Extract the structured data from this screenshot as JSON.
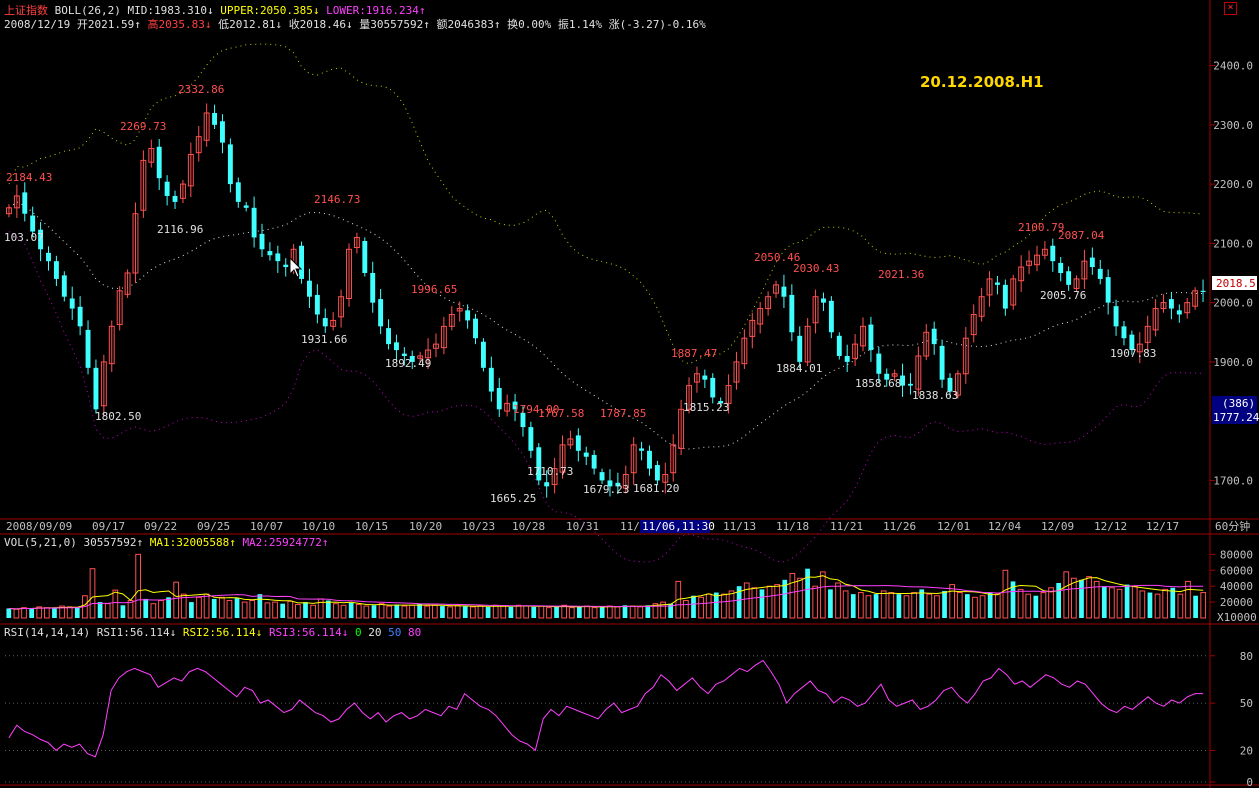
{
  "header": {
    "index_name": "上证指数",
    "boll_label": "BOLL(26,2)",
    "mid": "MID:1983.310↓",
    "upper": "UPPER:2050.385↓",
    "lower": "LOWER:1916.234↑",
    "date": "2008/12/19",
    "open": "开2021.59↑",
    "high": "高2035.83↓",
    "low": "低2012.81↓",
    "close": "收2018.46↓",
    "volume": "量30557592↑",
    "amount": "额2046383↑",
    "turnover": "换0.00%",
    "amplitude": "振1.14%",
    "change": "涨(-3.27)-0.16%"
  },
  "watermark": "20.12.2008.H1",
  "close_icon": "close-icon",
  "chart_data": [
    {
      "type": "candlestick",
      "title": "上证指数",
      "y_ticks": [
        "2400.0",
        "2300.0",
        "2200.0",
        "2100.0",
        "2000.0",
        "1900.0",
        "1700.0"
      ],
      "ylim": [
        1640,
        2460
      ],
      "x_ticks": [
        "2008/09/09",
        "09/17",
        "09/22",
        "09/25",
        "10/07",
        "10/10",
        "10/15",
        "10/20",
        "10/23",
        "10/28",
        "10/31",
        "11/0",
        "11/06,11:30",
        "11/13",
        "11/18",
        "11/21",
        "11/26",
        "12/01",
        "12/04",
        "12/09",
        "12/12",
        "12/17",
        "60分钟"
      ],
      "last_price": "2018.5",
      "side_count": "(386)",
      "side_value": "1777.24",
      "annotations_high": [
        "2184.43",
        "2269.73",
        "2332.86",
        "2146.73",
        "1996.65",
        "1794.00",
        "1767.58",
        "1787.85",
        "1887.47",
        "2050.46",
        "2030.43",
        "2021.36",
        "2100.79",
        "2087.04"
      ],
      "annotations_low": [
        "103.07",
        "2116.96",
        "1802.50",
        "1931.66",
        "1892.49",
        "1665.25",
        "1710.73",
        "1679.23",
        "1681.20",
        "1815.23",
        "1884.01",
        "1858.68",
        "1838.63",
        "2005.76",
        "1907.83"
      ],
      "close_series": [
        2160,
        2180,
        2150,
        2120,
        2090,
        2070,
        2040,
        2010,
        1990,
        1960,
        1890,
        1820,
        1900,
        1960,
        2020,
        2050,
        2150,
        2240,
        2260,
        2210,
        2180,
        2170,
        2200,
        2250,
        2280,
        2320,
        2300,
        2270,
        2200,
        2170,
        2160,
        2110,
        2090,
        2080,
        2070,
        2060,
        2090,
        2040,
        2010,
        1980,
        1960,
        1970,
        2010,
        2090,
        2110,
        2050,
        2000,
        1960,
        1930,
        1920,
        1910,
        1900,
        1910,
        1920,
        1930,
        1960,
        1980,
        1990,
        1970,
        1940,
        1890,
        1850,
        1820,
        1830,
        1820,
        1790,
        1750,
        1700,
        1690,
        1720,
        1760,
        1770,
        1750,
        1740,
        1720,
        1700,
        1690,
        1690,
        1710,
        1760,
        1750,
        1720,
        1700,
        1710,
        1760,
        1820,
        1860,
        1880,
        1870,
        1840,
        1830,
        1860,
        1900,
        1940,
        1970,
        1990,
        2010,
        2030,
        2010,
        1950,
        1900,
        1960,
        2010,
        2000,
        1950,
        1910,
        1900,
        1930,
        1960,
        1920,
        1880,
        1870,
        1880,
        1860,
        1860,
        1910,
        1950,
        1930,
        1870,
        1850,
        1880,
        1940,
        1980,
        2010,
        2040,
        2030,
        1990,
        2040,
        2060,
        2070,
        2080,
        2090,
        2070,
        2050,
        2030,
        2040,
        2070,
        2060,
        2040,
        2000,
        1960,
        1940,
        1920,
        1930,
        1960,
        1990,
        2000,
        1990,
        1980,
        2000,
        2020,
        2018
      ]
    },
    {
      "type": "bar",
      "title": "VOL(5,21,0)",
      "legend": [
        "30557592↑",
        "MA1:32005588↑",
        "MA2:25924772↑"
      ],
      "y_ticks": [
        "80000",
        "60000",
        "40000",
        "20000"
      ],
      "unit": "X10000",
      "ylim": [
        0,
        88000
      ],
      "values": [
        12000,
        11000,
        13000,
        12000,
        14000,
        13000,
        12000,
        15000,
        14000,
        13000,
        28000,
        62000,
        20000,
        18000,
        35000,
        16000,
        22000,
        80000,
        24000,
        18000,
        22000,
        26000,
        45000,
        30000,
        20000,
        26000,
        30000,
        24000,
        26000,
        22000,
        25000,
        20000,
        22000,
        30000,
        19000,
        20000,
        18000,
        21000,
        17000,
        20000,
        16000,
        24000,
        22000,
        18000,
        16000,
        19000,
        17000,
        15000,
        16000,
        18000,
        15000,
        17000,
        15000,
        16000,
        18000,
        15000,
        16000,
        15000,
        14000,
        16000,
        15000,
        14000,
        15000,
        14000,
        16000,
        15000,
        14000,
        16000,
        15000,
        14000,
        15000,
        13000,
        14000,
        16000,
        13000,
        14000,
        15000,
        13000,
        14000,
        15000,
        14000,
        16000,
        15000,
        14000,
        16000,
        18000,
        20000,
        18000,
        46000,
        22000,
        28000,
        26000,
        30000,
        32000,
        30000,
        34000,
        40000,
        44000,
        38000,
        36000,
        40000,
        42000,
        48000,
        56000,
        50000,
        62000,
        40000,
        58000,
        36000,
        44000,
        34000,
        30000,
        32000,
        28000,
        30000,
        34000,
        32000,
        30000,
        28000,
        32000,
        36000,
        30000,
        28000,
        34000,
        42000,
        32000,
        30000,
        26000,
        28000,
        32000,
        30000,
        60000,
        46000,
        36000,
        30000,
        28000,
        32000,
        38000,
        44000,
        58000,
        50000,
        48000,
        52000,
        46000,
        40000,
        38000,
        36000,
        42000,
        40000,
        34000,
        32000,
        30000,
        36000,
        38000,
        30000,
        46000,
        28000,
        32000
      ]
    },
    {
      "type": "line",
      "title": "RSI(14,14,14)",
      "legend": [
        "RSI1:56.114↓",
        "RSI2:56.114↓",
        "RSI3:56.114↓",
        "0",
        "20",
        "50",
        "80"
      ],
      "y_ticks": [
        "80",
        "50",
        "20",
        "0"
      ],
      "ylim": [
        0,
        90
      ],
      "values": [
        28,
        36,
        32,
        30,
        27,
        25,
        20,
        24,
        22,
        24,
        18,
        16,
        30,
        58,
        66,
        70,
        72,
        70,
        68,
        60,
        63,
        66,
        64,
        70,
        72,
        70,
        66,
        62,
        58,
        54,
        60,
        58,
        50,
        52,
        48,
        44,
        46,
        52,
        48,
        44,
        42,
        38,
        40,
        46,
        50,
        44,
        40,
        44,
        38,
        42,
        44,
        40,
        42,
        46,
        44,
        42,
        48,
        46,
        56,
        52,
        48,
        46,
        42,
        36,
        30,
        26,
        24,
        20,
        40,
        46,
        42,
        48,
        46,
        44,
        42,
        40,
        46,
        50,
        44,
        46,
        48,
        56,
        60,
        68,
        64,
        58,
        62,
        66,
        60,
        56,
        62,
        64,
        68,
        72,
        70,
        74,
        77,
        70,
        62,
        50,
        56,
        60,
        64,
        58,
        56,
        50,
        54,
        52,
        48,
        50,
        56,
        62,
        52,
        48,
        50,
        52,
        46,
        48,
        52,
        58,
        60,
        54,
        50,
        56,
        64,
        66,
        72,
        68,
        62,
        64,
        60,
        64,
        68,
        66,
        62,
        60,
        64,
        62,
        56,
        50,
        46,
        44,
        48,
        46,
        50,
        54,
        50,
        48,
        52,
        50,
        54,
        56,
        56
      ]
    }
  ]
}
